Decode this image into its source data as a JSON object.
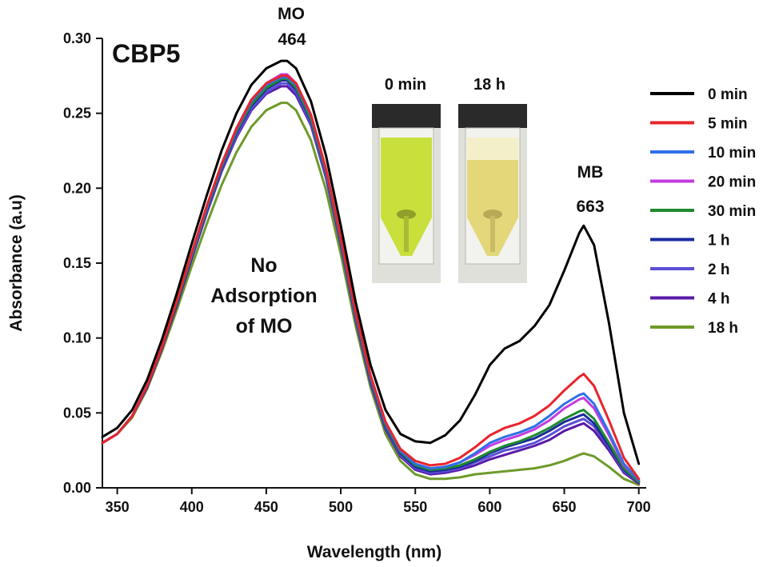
{
  "chart_data": {
    "type": "line",
    "title": "CBP5",
    "xlabel": "Wavelength (nm)",
    "ylabel": "Absorbance (a.u)",
    "xlim": [
      340,
      705
    ],
    "ylim": [
      0,
      0.3
    ],
    "xticks": [
      350,
      400,
      450,
      500,
      550,
      600,
      650,
      700
    ],
    "yticks": [
      0.0,
      0.05,
      0.1,
      0.15,
      0.2,
      0.25,
      0.3
    ],
    "xtick_labels": [
      "350",
      "400",
      "450",
      "500",
      "550",
      "600",
      "650",
      "700"
    ],
    "ytick_labels": [
      "0.00",
      "0.05",
      "0.10",
      "0.15",
      "0.20",
      "0.25",
      "0.30"
    ],
    "grid": false,
    "legend_position": "right",
    "x": [
      340,
      350,
      360,
      370,
      380,
      390,
      400,
      410,
      420,
      430,
      440,
      450,
      460,
      464,
      470,
      480,
      490,
      500,
      510,
      520,
      530,
      540,
      550,
      560,
      570,
      580,
      590,
      600,
      610,
      620,
      630,
      640,
      650,
      660,
      663,
      670,
      680,
      690,
      700
    ],
    "series": [
      {
        "name": "0 min",
        "color": "#000000",
        "values": [
          0.034,
          0.04,
          0.052,
          0.072,
          0.099,
          0.13,
          0.163,
          0.195,
          0.225,
          0.25,
          0.269,
          0.28,
          0.285,
          0.285,
          0.28,
          0.258,
          0.222,
          0.175,
          0.124,
          0.082,
          0.052,
          0.036,
          0.031,
          0.03,
          0.035,
          0.045,
          0.062,
          0.082,
          0.093,
          0.098,
          0.108,
          0.122,
          0.145,
          0.17,
          0.175,
          0.162,
          0.11,
          0.05,
          0.016
        ]
      },
      {
        "name": "5 min",
        "color": "#e8242b",
        "values": [
          0.03,
          0.036,
          0.048,
          0.068,
          0.094,
          0.125,
          0.157,
          0.188,
          0.216,
          0.24,
          0.259,
          0.27,
          0.275,
          0.275,
          0.27,
          0.249,
          0.213,
          0.167,
          0.117,
          0.075,
          0.044,
          0.026,
          0.018,
          0.015,
          0.016,
          0.02,
          0.027,
          0.035,
          0.04,
          0.043,
          0.048,
          0.055,
          0.065,
          0.074,
          0.076,
          0.068,
          0.045,
          0.02,
          0.006
        ]
      },
      {
        "name": "10 min",
        "color": "#2f6fe8",
        "values": [
          0.03,
          0.036,
          0.048,
          0.068,
          0.094,
          0.125,
          0.156,
          0.187,
          0.215,
          0.239,
          0.258,
          0.269,
          0.274,
          0.274,
          0.269,
          0.248,
          0.212,
          0.166,
          0.116,
          0.074,
          0.043,
          0.025,
          0.016,
          0.013,
          0.014,
          0.017,
          0.023,
          0.03,
          0.034,
          0.037,
          0.041,
          0.048,
          0.056,
          0.062,
          0.063,
          0.056,
          0.037,
          0.016,
          0.005
        ]
      },
      {
        "name": "20 min",
        "color": "#c43be0",
        "values": [
          0.03,
          0.036,
          0.048,
          0.068,
          0.094,
          0.125,
          0.156,
          0.187,
          0.216,
          0.24,
          0.259,
          0.27,
          0.276,
          0.276,
          0.27,
          0.249,
          0.213,
          0.167,
          0.117,
          0.075,
          0.044,
          0.025,
          0.016,
          0.013,
          0.014,
          0.017,
          0.022,
          0.028,
          0.032,
          0.035,
          0.039,
          0.045,
          0.053,
          0.059,
          0.06,
          0.053,
          0.035,
          0.015,
          0.005
        ]
      },
      {
        "name": "30 min",
        "color": "#1f8a2e",
        "values": [
          0.03,
          0.036,
          0.048,
          0.068,
          0.094,
          0.124,
          0.155,
          0.186,
          0.214,
          0.238,
          0.256,
          0.267,
          0.273,
          0.273,
          0.267,
          0.246,
          0.211,
          0.165,
          0.115,
          0.073,
          0.042,
          0.024,
          0.015,
          0.012,
          0.013,
          0.015,
          0.019,
          0.024,
          0.028,
          0.031,
          0.035,
          0.04,
          0.046,
          0.051,
          0.052,
          0.046,
          0.03,
          0.013,
          0.004
        ]
      },
      {
        "name": "1 h",
        "color": "#1b2a9c",
        "values": [
          0.03,
          0.036,
          0.048,
          0.067,
          0.093,
          0.123,
          0.154,
          0.185,
          0.213,
          0.237,
          0.255,
          0.266,
          0.272,
          0.272,
          0.266,
          0.245,
          0.21,
          0.164,
          0.114,
          0.072,
          0.041,
          0.023,
          0.014,
          0.011,
          0.012,
          0.014,
          0.018,
          0.023,
          0.027,
          0.03,
          0.033,
          0.038,
          0.044,
          0.048,
          0.049,
          0.043,
          0.028,
          0.012,
          0.004
        ]
      },
      {
        "name": "2 h",
        "color": "#5b4fd6",
        "values": [
          0.03,
          0.036,
          0.048,
          0.067,
          0.093,
          0.123,
          0.154,
          0.184,
          0.212,
          0.235,
          0.253,
          0.264,
          0.27,
          0.27,
          0.264,
          0.243,
          0.208,
          0.163,
          0.113,
          0.071,
          0.04,
          0.022,
          0.013,
          0.01,
          0.011,
          0.013,
          0.017,
          0.021,
          0.025,
          0.027,
          0.03,
          0.035,
          0.041,
          0.045,
          0.046,
          0.041,
          0.027,
          0.011,
          0.004
        ]
      },
      {
        "name": "4 h",
        "color": "#5a1aa8",
        "values": [
          0.03,
          0.036,
          0.048,
          0.067,
          0.093,
          0.122,
          0.153,
          0.183,
          0.211,
          0.234,
          0.252,
          0.263,
          0.268,
          0.268,
          0.262,
          0.242,
          0.207,
          0.162,
          0.112,
          0.07,
          0.039,
          0.021,
          0.012,
          0.009,
          0.01,
          0.012,
          0.015,
          0.019,
          0.022,
          0.025,
          0.028,
          0.032,
          0.038,
          0.042,
          0.043,
          0.038,
          0.025,
          0.01,
          0.003
        ]
      },
      {
        "name": "18 h",
        "color": "#6e9a2a",
        "values": [
          0.03,
          0.036,
          0.047,
          0.066,
          0.091,
          0.119,
          0.148,
          0.176,
          0.202,
          0.224,
          0.241,
          0.252,
          0.257,
          0.257,
          0.252,
          0.232,
          0.199,
          0.156,
          0.108,
          0.067,
          0.036,
          0.018,
          0.009,
          0.006,
          0.006,
          0.007,
          0.009,
          0.01,
          0.011,
          0.012,
          0.013,
          0.015,
          0.018,
          0.022,
          0.023,
          0.021,
          0.014,
          0.006,
          0.002
        ]
      }
    ],
    "annotations": {
      "mo_label": "MO",
      "mo_peak": "464",
      "mb_label": "MB",
      "mb_peak": "663",
      "no_ads_line1": "No",
      "no_ads_line2": "Adsorption",
      "no_ads_line3": "of MO",
      "inset_left_label": "0 min",
      "inset_right_label": "18 h"
    },
    "colors": {
      "mo_color": "#e8424a",
      "mb_color": "#3b4fd8",
      "vial_left_liquid": "#c9df3c",
      "vial_right_liquid": "#e3d77a"
    }
  }
}
